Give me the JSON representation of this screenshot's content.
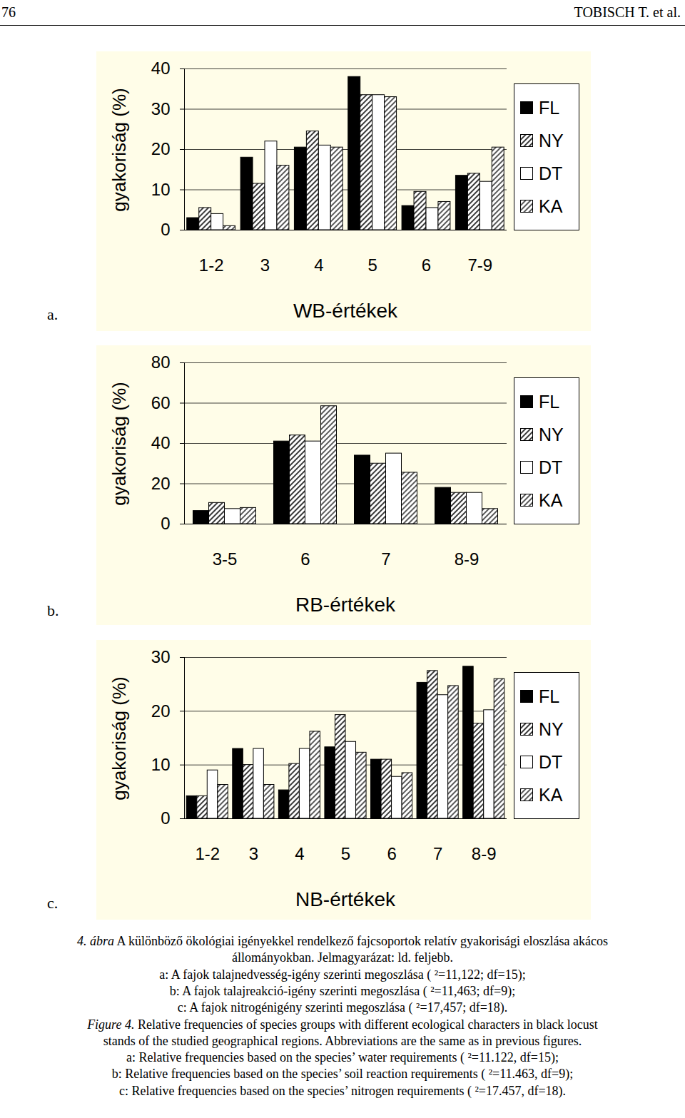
{
  "page": {
    "number": "76",
    "running_head": "TOBISCH T. et al."
  },
  "panel_labels": [
    "a.",
    "b.",
    "c."
  ],
  "chart_data": [
    {
      "type": "bar",
      "x_label": "WB-értékek",
      "y_label": "gyakoriság (%)",
      "categories": [
        "1-2",
        "3",
        "4",
        "5",
        "6",
        "7-9"
      ],
      "series": [
        {
          "name": "FL",
          "color": "#000000",
          "values": [
            3,
            18,
            20.5,
            38,
            6,
            13.5
          ]
        },
        {
          "name": "NY",
          "color": "#3a3a3a",
          "values": [
            5.5,
            11.5,
            24.5,
            33.5,
            9.5,
            14
          ]
        },
        {
          "name": "DT",
          "color": "#ffffff",
          "values": [
            4,
            22,
            21,
            33.5,
            5.5,
            12
          ]
        },
        {
          "name": "KA",
          "color": "#5a5a5a",
          "values": [
            1,
            16,
            20.5,
            33,
            7,
            20.5
          ]
        }
      ],
      "ylim": [
        0,
        40
      ],
      "yticks": [
        0,
        10,
        20,
        30,
        40
      ],
      "grid": true,
      "legend": "right"
    },
    {
      "type": "bar",
      "x_label": "RB-értékek",
      "y_label": "gyakoriság (%)",
      "categories": [
        "3-5",
        "6",
        "7",
        "8-9"
      ],
      "series": [
        {
          "name": "FL",
          "color": "#000000",
          "values": [
            6.5,
            41,
            34,
            18
          ]
        },
        {
          "name": "NY",
          "color": "#3a3a3a",
          "values": [
            10.5,
            44,
            30,
            15.5
          ]
        },
        {
          "name": "DT",
          "color": "#ffffff",
          "values": [
            7.5,
            41,
            35,
            15.5
          ]
        },
        {
          "name": "KA",
          "color": "#5a5a5a",
          "values": [
            8,
            58.5,
            25.5,
            7.5
          ]
        }
      ],
      "ylim": [
        0,
        80
      ],
      "yticks": [
        0,
        20,
        40,
        60,
        80
      ],
      "grid": true,
      "legend": "right"
    },
    {
      "type": "bar",
      "x_label": "NB-értékek",
      "y_label": "gyakoriság (%)",
      "categories": [
        "1-2",
        "3",
        "4",
        "5",
        "6",
        "7",
        "8-9"
      ],
      "series": [
        {
          "name": "FL",
          "color": "#000000",
          "values": [
            4.2,
            13,
            5.3,
            13.3,
            11,
            25.3,
            28.3
          ]
        },
        {
          "name": "NY",
          "color": "#3a3a3a",
          "values": [
            4.2,
            10,
            10.2,
            19.3,
            11,
            27.5,
            17.7
          ]
        },
        {
          "name": "DT",
          "color": "#ffffff",
          "values": [
            9,
            13,
            13,
            14.3,
            7.8,
            23,
            20.2
          ]
        },
        {
          "name": "KA",
          "color": "#5a5a5a",
          "values": [
            6.3,
            6.3,
            16.2,
            12.3,
            8.5,
            24.7,
            26
          ]
        }
      ],
      "ylim": [
        0,
        30
      ],
      "yticks": [
        0,
        10,
        20,
        30
      ],
      "grid": true,
      "legend": "right"
    }
  ],
  "caption_hu": {
    "label": "4. ábra",
    "lines": [
      "A különböző ökológiai igényekkel rendelkező fajcsoportok relatív gyakorisági eloszlása akácos",
      "állományokban. Jelmagyarázat: ld. feljebb."
    ],
    "items": [
      "a: A fajok talajnedvesség-igény szerinti megoszlása ( ²=11,122; df=15);",
      "b:  A fajok talajreakció-igény szerinti megoszlása ( ²=11,463; df=9);",
      "c: A fajok nitrogénigény szerinti megoszlása ( ²=17,457; df=18)."
    ]
  },
  "caption_en": {
    "label": "Figure 4.",
    "lines": [
      "Relative frequencies of species groups with different ecological characters in black locust",
      "stands of the studied geographical regions. Abbreviations are the same as in previous figures."
    ],
    "items": [
      "a: Relative frequencies based on the species’ water requirements ( ²=11.122, df=15);",
      "b: Relative frequencies based on the species’ soil reaction requirements ( ²=11.463, df=9);",
      "c: Relative frequencies based on the species’ nitrogen requirements ( ²=17.457, df=18)."
    ]
  }
}
